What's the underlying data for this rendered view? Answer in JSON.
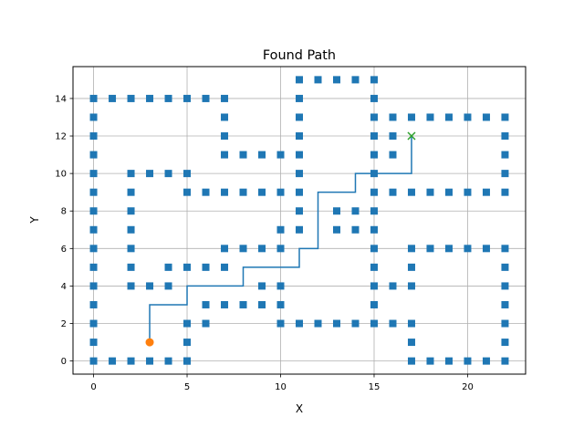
{
  "chart_data": {
    "type": "scatter",
    "title": "Found Path",
    "xlabel": "X",
    "ylabel": "Y",
    "xlim": [
      -1.1,
      23.1
    ],
    "ylim": [
      -0.7,
      15.7
    ],
    "xticks": [
      0,
      5,
      10,
      15,
      20
    ],
    "yticks": [
      0,
      2,
      4,
      6,
      8,
      10,
      12,
      14
    ],
    "grid": true,
    "colors": {
      "obstacle": "#1f77b4",
      "path": "#1f77b4",
      "start": "#ff7f0e",
      "goal": "#2ca02c"
    },
    "obstacles": [
      [
        0,
        0
      ],
      [
        0,
        1
      ],
      [
        0,
        2
      ],
      [
        0,
        3
      ],
      [
        0,
        4
      ],
      [
        0,
        5
      ],
      [
        0,
        6
      ],
      [
        0,
        7
      ],
      [
        0,
        8
      ],
      [
        0,
        9
      ],
      [
        0,
        10
      ],
      [
        0,
        11
      ],
      [
        0,
        12
      ],
      [
        0,
        13
      ],
      [
        0,
        14
      ],
      [
        1,
        0
      ],
      [
        2,
        0
      ],
      [
        3,
        0
      ],
      [
        4,
        0
      ],
      [
        5,
        0
      ],
      [
        1,
        14
      ],
      [
        2,
        14
      ],
      [
        3,
        14
      ],
      [
        4,
        14
      ],
      [
        5,
        14
      ],
      [
        6,
        14
      ],
      [
        7,
        14
      ],
      [
        7,
        13
      ],
      [
        7,
        12
      ],
      [
        7,
        11
      ],
      [
        8,
        11
      ],
      [
        9,
        11
      ],
      [
        10,
        11
      ],
      [
        2,
        10
      ],
      [
        3,
        10
      ],
      [
        4,
        10
      ],
      [
        5,
        10
      ],
      [
        5,
        9
      ],
      [
        2,
        9
      ],
      [
        2,
        8
      ],
      [
        2,
        7
      ],
      [
        2,
        6
      ],
      [
        2,
        5
      ],
      [
        2,
        4
      ],
      [
        6,
        9
      ],
      [
        7,
        9
      ],
      [
        8,
        9
      ],
      [
        9,
        9
      ],
      [
        10,
        9
      ],
      [
        11,
        15
      ],
      [
        12,
        15
      ],
      [
        13,
        15
      ],
      [
        14,
        15
      ],
      [
        15,
        15
      ],
      [
        11,
        14
      ],
      [
        11,
        13
      ],
      [
        11,
        12
      ],
      [
        11,
        11
      ],
      [
        11,
        10
      ],
      [
        11,
        9
      ],
      [
        11,
        8
      ],
      [
        11,
        7
      ],
      [
        15,
        14
      ],
      [
        15,
        13
      ],
      [
        15,
        12
      ],
      [
        15,
        11
      ],
      [
        15,
        10
      ],
      [
        15,
        9
      ],
      [
        15,
        8
      ],
      [
        15,
        7
      ],
      [
        15,
        6
      ],
      [
        15,
        5
      ],
      [
        15,
        4
      ],
      [
        15,
        3
      ],
      [
        15,
        2
      ],
      [
        16,
        13
      ],
      [
        17,
        13
      ],
      [
        18,
        13
      ],
      [
        19,
        13
      ],
      [
        20,
        13
      ],
      [
        21,
        13
      ],
      [
        22,
        13
      ],
      [
        16,
        12
      ],
      [
        16,
        11
      ],
      [
        16,
        9
      ],
      [
        17,
        9
      ],
      [
        18,
        9
      ],
      [
        19,
        9
      ],
      [
        20,
        9
      ],
      [
        21,
        9
      ],
      [
        22,
        9
      ],
      [
        22,
        12
      ],
      [
        22,
        11
      ],
      [
        22,
        10
      ],
      [
        13,
        8
      ],
      [
        14,
        8
      ],
      [
        13,
        7
      ],
      [
        14,
        7
      ],
      [
        10,
        7
      ],
      [
        10,
        6
      ],
      [
        7,
        6
      ],
      [
        8,
        6
      ],
      [
        9,
        6
      ],
      [
        4,
        5
      ],
      [
        5,
        5
      ],
      [
        6,
        5
      ],
      [
        7,
        5
      ],
      [
        3,
        4
      ],
      [
        4,
        4
      ],
      [
        9,
        4
      ],
      [
        10,
        4
      ],
      [
        6,
        3
      ],
      [
        7,
        3
      ],
      [
        8,
        3
      ],
      [
        9,
        3
      ],
      [
        10,
        3
      ],
      [
        5,
        2
      ],
      [
        6,
        2
      ],
      [
        5,
        1
      ],
      [
        5,
        0
      ],
      [
        10,
        2
      ],
      [
        11,
        2
      ],
      [
        12,
        2
      ],
      [
        13,
        2
      ],
      [
        14,
        2
      ],
      [
        16,
        2
      ],
      [
        17,
        2
      ],
      [
        16,
        4
      ],
      [
        17,
        4
      ],
      [
        17,
        5
      ],
      [
        17,
        6
      ],
      [
        18,
        6
      ],
      [
        19,
        6
      ],
      [
        20,
        6
      ],
      [
        21,
        6
      ],
      [
        22,
        6
      ],
      [
        22,
        5
      ],
      [
        22,
        4
      ],
      [
        22,
        3
      ],
      [
        22,
        2
      ],
      [
        22,
        1
      ],
      [
        22,
        0
      ],
      [
        17,
        1
      ],
      [
        17,
        0
      ],
      [
        18,
        0
      ],
      [
        19,
        0
      ],
      [
        20,
        0
      ],
      [
        21,
        0
      ]
    ],
    "path": [
      [
        3,
        1
      ],
      [
        3,
        3
      ],
      [
        5,
        3
      ],
      [
        5,
        4
      ],
      [
        8,
        4
      ],
      [
        8,
        5
      ],
      [
        11,
        5
      ],
      [
        11,
        6
      ],
      [
        12,
        6
      ],
      [
        12,
        9
      ],
      [
        14,
        9
      ],
      [
        14,
        10
      ],
      [
        17,
        10
      ],
      [
        17,
        12
      ]
    ],
    "start": [
      3,
      1
    ],
    "goal": [
      17,
      12
    ]
  }
}
